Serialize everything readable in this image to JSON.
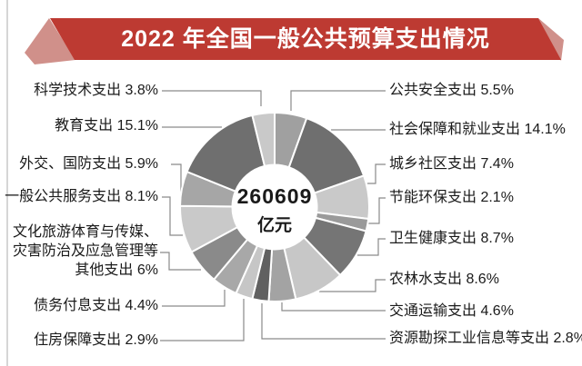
{
  "banner": {
    "text": "2022 年全国一般公共预算支出情况",
    "band_color": "#bd3a32",
    "fold_color": "#d0908a",
    "text_color": "#ffffff"
  },
  "chart_data": {
    "type": "pie",
    "title": "2022 年全国一般公共预算支出情况",
    "center_label": {
      "value": "260609",
      "unit": "亿元"
    },
    "total_display": "260609 亿元",
    "legend_position": "callout-labels",
    "start_angle_deg": 0,
    "slices": [
      {
        "name": "公共安全支出",
        "value": 5.5,
        "label": "公共安全支出 5.5%",
        "color": "#a0a0a0"
      },
      {
        "name": "社会保障和就业支出",
        "value": 14.1,
        "label": "社会保障和就业支出 14.1%",
        "color": "#6f6f6f"
      },
      {
        "name": "城乡社区支出",
        "value": 7.4,
        "label": "城乡社区支出 7.4%",
        "color": "#c9c9c9"
      },
      {
        "name": "节能环保支出",
        "value": 2.1,
        "label": "节能环保支出 2.1%",
        "color": "#9a9a9a"
      },
      {
        "name": "卫生健康支出",
        "value": 8.7,
        "label": "卫生健康支出 8.7%",
        "color": "#757575"
      },
      {
        "name": "农林水支出",
        "value": 8.6,
        "label": "农林水支出 8.6%",
        "color": "#c7c7c7"
      },
      {
        "name": "交通运输支出",
        "value": 4.6,
        "label": "交通运输支出 4.6%",
        "color": "#a3a3a3"
      },
      {
        "name": "资源勘探工业信息等支出",
        "value": 2.8,
        "label": "资源勘探工业信息等支出 2.8%",
        "color": "#606060"
      },
      {
        "name": "住房保障支出",
        "value": 2.9,
        "label": "住房保障支出 2.9%",
        "color": "#c6c6c6"
      },
      {
        "name": "债务付息支出",
        "value": 4.4,
        "label": "债务付息支出 4.4%",
        "color": "#a8a8a8"
      },
      {
        "name": "文化旅游体育与传媒、灾害防治及应急管理等其他支出",
        "value": 6,
        "label": "文化旅游体育与传媒、灾害防治及应急管理等其他支出 6%",
        "label_lines": [
          "文化旅游体育与传媒、",
          "灾害防治及应急管理等",
          "其他支出 6%"
        ],
        "color": "#8a8a8a"
      },
      {
        "name": "一般公共服务支出",
        "value": 8.1,
        "label": "一般公共服务支出 8.1%",
        "color": "#c9c9c9"
      },
      {
        "name": "外交、国防支出",
        "value": 5.9,
        "label": "外交、国防支出 5.9%",
        "color": "#a6a6a6"
      },
      {
        "name": "教育支出",
        "value": 15.1,
        "label": "教育支出 15.1%",
        "color": "#6f6f6f"
      },
      {
        "name": "科学技术支出",
        "value": 3.8,
        "label": "科学技术支出 3.8%",
        "color": "#c9c9c9"
      }
    ]
  }
}
